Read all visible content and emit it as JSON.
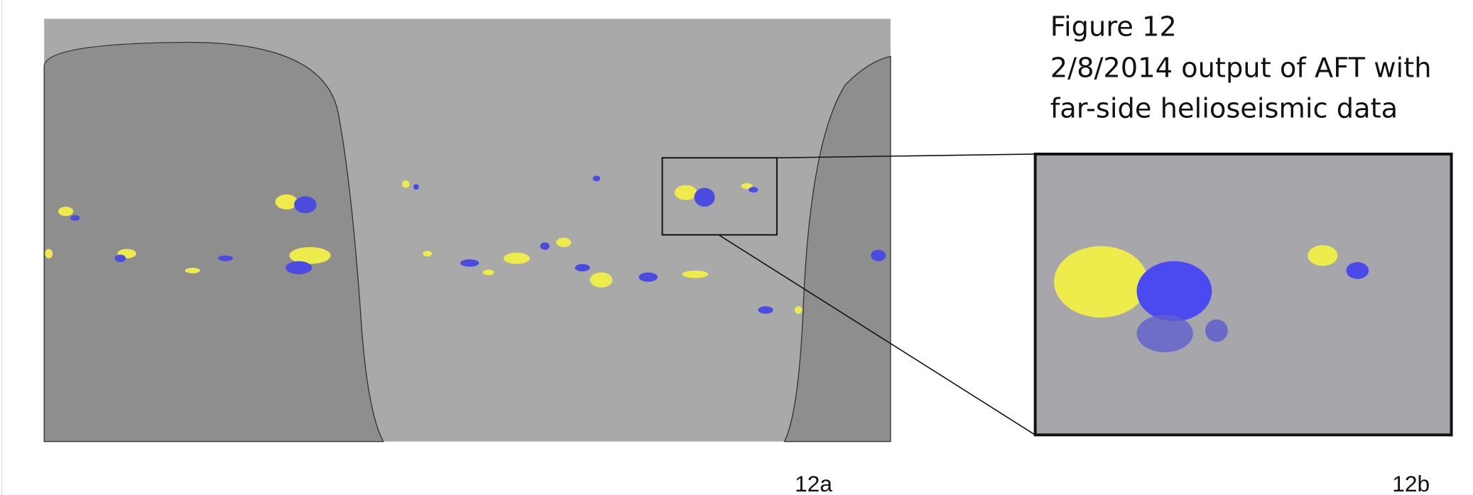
{
  "figure": {
    "title": "Figure 12",
    "caption_lines": [
      "2/8/2014  output of AFT with",
      "far-side helioseismic data"
    ],
    "panel_labels": [
      "12a",
      "12b"
    ]
  }
}
